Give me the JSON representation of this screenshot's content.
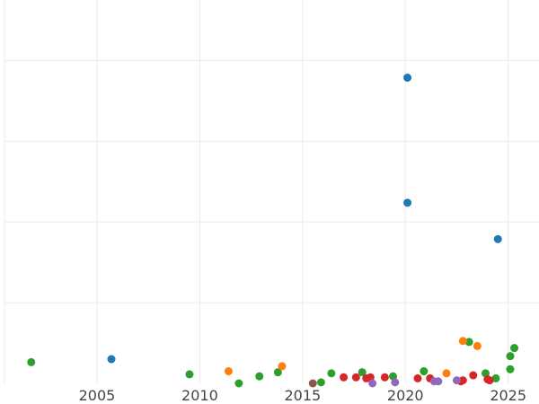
{
  "chart_data": {
    "type": "scatter",
    "title": "",
    "xlabel": "",
    "ylabel": "",
    "xlim": [
      2000.5,
      2026.5
    ],
    "ylim": [
      0,
      380
    ],
    "x_ticks": [
      2005,
      2010,
      2015,
      2020,
      2025
    ],
    "y_gridlines": [
      80,
      160,
      240,
      320
    ],
    "grid": true,
    "legend": "none",
    "series": [
      {
        "color": "#1f77b4",
        "points": [
          {
            "x": 2005.7,
            "y": 24
          },
          {
            "x": 2020.1,
            "y": 303
          },
          {
            "x": 2020.1,
            "y": 179
          },
          {
            "x": 2024.5,
            "y": 143
          }
        ]
      },
      {
        "color": "#2ca02c",
        "points": [
          {
            "x": 2001.8,
            "y": 21
          },
          {
            "x": 2009.5,
            "y": 9
          },
          {
            "x": 2011.9,
            "y": 0
          },
          {
            "x": 2012.9,
            "y": 7
          },
          {
            "x": 2013.8,
            "y": 11
          },
          {
            "x": 2015.9,
            "y": 1
          },
          {
            "x": 2016.4,
            "y": 10
          },
          {
            "x": 2017.9,
            "y": 11
          },
          {
            "x": 2019.4,
            "y": 7
          },
          {
            "x": 2020.9,
            "y": 12
          },
          {
            "x": 2023.1,
            "y": 41
          },
          {
            "x": 2023.9,
            "y": 10
          },
          {
            "x": 2024.4,
            "y": 5
          },
          {
            "x": 2025.1,
            "y": 14
          },
          {
            "x": 2025.1,
            "y": 27
          },
          {
            "x": 2025.3,
            "y": 35
          }
        ]
      },
      {
        "color": "#ff7f0e",
        "points": [
          {
            "x": 2011.4,
            "y": 12
          },
          {
            "x": 2014.0,
            "y": 17
          },
          {
            "x": 2022.0,
            "y": 10
          },
          {
            "x": 2022.8,
            "y": 42
          },
          {
            "x": 2023.5,
            "y": 37
          }
        ]
      },
      {
        "color": "#d62728",
        "points": [
          {
            "x": 2017.0,
            "y": 6
          },
          {
            "x": 2017.6,
            "y": 6
          },
          {
            "x": 2018.1,
            "y": 5
          },
          {
            "x": 2018.3,
            "y": 6
          },
          {
            "x": 2019.0,
            "y": 6
          },
          {
            "x": 2020.6,
            "y": 5
          },
          {
            "x": 2021.2,
            "y": 5
          },
          {
            "x": 2022.7,
            "y": 2
          },
          {
            "x": 2022.8,
            "y": 3
          },
          {
            "x": 2023.3,
            "y": 8
          },
          {
            "x": 2024.0,
            "y": 4
          },
          {
            "x": 2024.1,
            "y": 3
          }
        ]
      },
      {
        "color": "#9467bd",
        "points": [
          {
            "x": 2018.4,
            "y": 0
          },
          {
            "x": 2019.5,
            "y": 1
          },
          {
            "x": 2021.4,
            "y": 2
          },
          {
            "x": 2021.6,
            "y": 2
          },
          {
            "x": 2022.5,
            "y": 3
          }
        ]
      },
      {
        "color": "#8c564b",
        "points": [
          {
            "x": 2015.5,
            "y": 0
          }
        ]
      }
    ]
  }
}
